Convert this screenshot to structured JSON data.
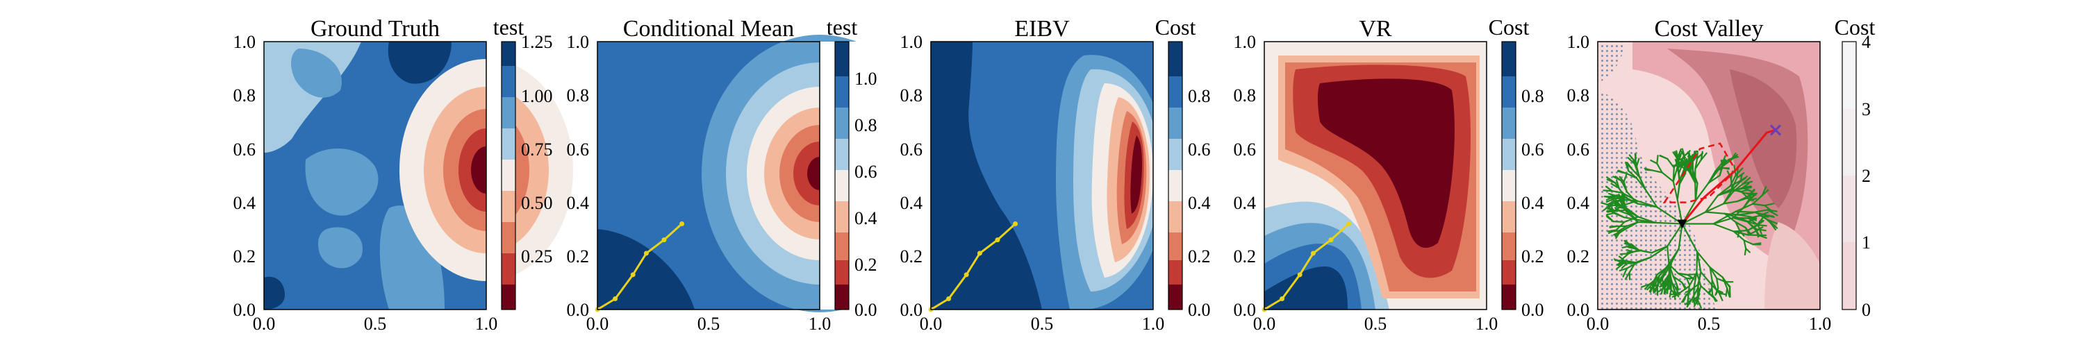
{
  "chart_data": [
    {
      "type": "heatmap",
      "title": "Ground Truth",
      "colorbar_label": "test",
      "colormap": "RdBu (discrete bands)",
      "xlim": [
        0,
        1
      ],
      "ylim": [
        0,
        1
      ],
      "x_ticks": [
        "0.0",
        "0.5",
        "1.0"
      ],
      "y_ticks": [
        "0.0",
        "0.2",
        "0.4",
        "0.6",
        "0.8",
        "1.0"
      ],
      "colorbar_ticks": [
        "0.25",
        "0.50",
        "0.75",
        "1.00",
        "1.25"
      ],
      "colorbar_range": [
        0.0,
        1.25
      ],
      "features": {
        "hotspot_center": [
          0.97,
          0.55
        ],
        "hotspot_min_value": 0.05,
        "background_value": 1.0
      }
    },
    {
      "type": "heatmap",
      "title": "Conditional Mean",
      "colorbar_label": "test",
      "colormap": "RdBu (discrete bands)",
      "xlim": [
        0,
        1
      ],
      "ylim": [
        0,
        1
      ],
      "x_ticks": [
        "0.0",
        "0.5",
        "1.0"
      ],
      "y_ticks": [
        "0.0",
        "0.2",
        "0.4",
        "0.6",
        "0.8",
        "1.0"
      ],
      "colorbar_ticks": [
        "0.0",
        "0.2",
        "0.4",
        "0.6",
        "0.8",
        "1.0"
      ],
      "colorbar_range": [
        0.0,
        1.15
      ],
      "path": {
        "color": "#e8d21a",
        "points": [
          [
            0.0,
            0.0
          ],
          [
            0.08,
            0.04
          ],
          [
            0.16,
            0.13
          ],
          [
            0.22,
            0.21
          ],
          [
            0.3,
            0.26
          ],
          [
            0.38,
            0.32
          ]
        ]
      }
    },
    {
      "type": "heatmap",
      "title": "EIBV",
      "colorbar_label": "Cost",
      "colormap": "RdBu (discrete bands)",
      "xlim": [
        0,
        1
      ],
      "ylim": [
        0,
        1
      ],
      "x_ticks": [
        "0.0",
        "0.5",
        "1.0"
      ],
      "y_ticks": [
        "0.0",
        "0.2",
        "0.4",
        "0.6",
        "0.8",
        "1.0"
      ],
      "colorbar_ticks": [
        "0.0",
        "0.2",
        "0.4",
        "0.6",
        "0.8"
      ],
      "colorbar_range": [
        0.0,
        1.0
      ],
      "path": {
        "color": "#e8d21a",
        "points": [
          [
            0.0,
            0.0
          ],
          [
            0.08,
            0.04
          ],
          [
            0.16,
            0.13
          ],
          [
            0.22,
            0.21
          ],
          [
            0.3,
            0.26
          ],
          [
            0.38,
            0.32
          ]
        ]
      }
    },
    {
      "type": "heatmap",
      "title": "VR",
      "colorbar_label": "Cost",
      "colormap": "RdBu (discrete bands)",
      "xlim": [
        0,
        1
      ],
      "ylim": [
        0,
        1
      ],
      "x_ticks": [
        "0.0",
        "0.5",
        "1.0"
      ],
      "y_ticks": [
        "0.0",
        "0.2",
        "0.4",
        "0.6",
        "0.8",
        "1.0"
      ],
      "colorbar_ticks": [
        "0.0",
        "0.2",
        "0.4",
        "0.6",
        "0.8"
      ],
      "colorbar_range": [
        0.0,
        1.0
      ],
      "path": {
        "color": "#e8d21a",
        "points": [
          [
            0.0,
            0.0
          ],
          [
            0.08,
            0.04
          ],
          [
            0.16,
            0.13
          ],
          [
            0.22,
            0.21
          ],
          [
            0.3,
            0.26
          ],
          [
            0.38,
            0.32
          ]
        ]
      }
    },
    {
      "type": "heatmap",
      "title": "Cost Valley",
      "colorbar_label": "Cost",
      "colormap": "white to dark red",
      "xlim": [
        0,
        1
      ],
      "ylim": [
        0,
        1
      ],
      "x_ticks": [
        "0.0",
        "0.5",
        "1.0"
      ],
      "y_ticks": [
        "0.0",
        "0.2",
        "0.4",
        "0.6",
        "0.8",
        "1.0"
      ],
      "colorbar_ticks": [
        "0",
        "1",
        "2",
        "3",
        "4"
      ],
      "colorbar_range": [
        0,
        4
      ],
      "tree_color": "#1f8a1f",
      "tree_root": [
        0.38,
        0.32
      ],
      "route": {
        "color": "#e8141a",
        "points": [
          [
            0.38,
            0.32
          ],
          [
            0.48,
            0.42
          ],
          [
            0.62,
            0.52
          ],
          [
            0.7,
            0.6
          ],
          [
            0.76,
            0.66
          ],
          [
            0.8,
            0.67
          ]
        ]
      },
      "budget_polygon": {
        "color": "#e8141a",
        "style": "dashed",
        "points": [
          [
            0.3,
            0.4
          ],
          [
            0.38,
            0.5
          ],
          [
            0.46,
            0.6
          ],
          [
            0.55,
            0.62
          ],
          [
            0.62,
            0.52
          ],
          [
            0.5,
            0.42
          ],
          [
            0.4,
            0.4
          ]
        ]
      },
      "markers": [
        {
          "name": "current-location",
          "shape": "triangle-down",
          "color": "#000000",
          "point": [
            0.38,
            0.32
          ]
        },
        {
          "name": "target",
          "shape": "x",
          "color": "#6a3db8",
          "point": [
            0.8,
            0.67
          ]
        }
      ]
    }
  ]
}
